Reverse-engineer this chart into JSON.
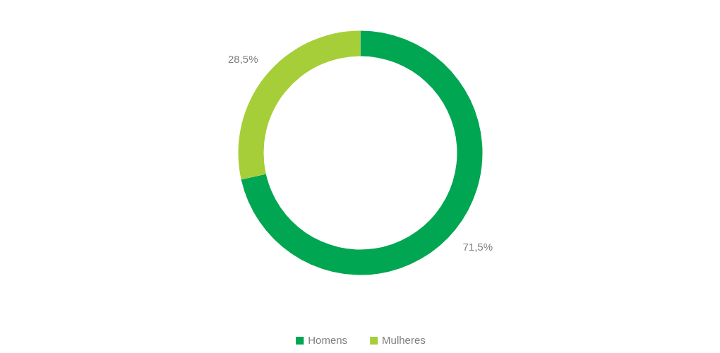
{
  "chart_data": {
    "type": "donut",
    "categories": [
      "Homens",
      "Mulheres"
    ],
    "values": [
      71.5,
      28.5
    ],
    "colors": [
      "#00a651",
      "#a6ce39"
    ],
    "value_labels": [
      "71,5%",
      "28,5%"
    ],
    "legend": "bottom"
  }
}
